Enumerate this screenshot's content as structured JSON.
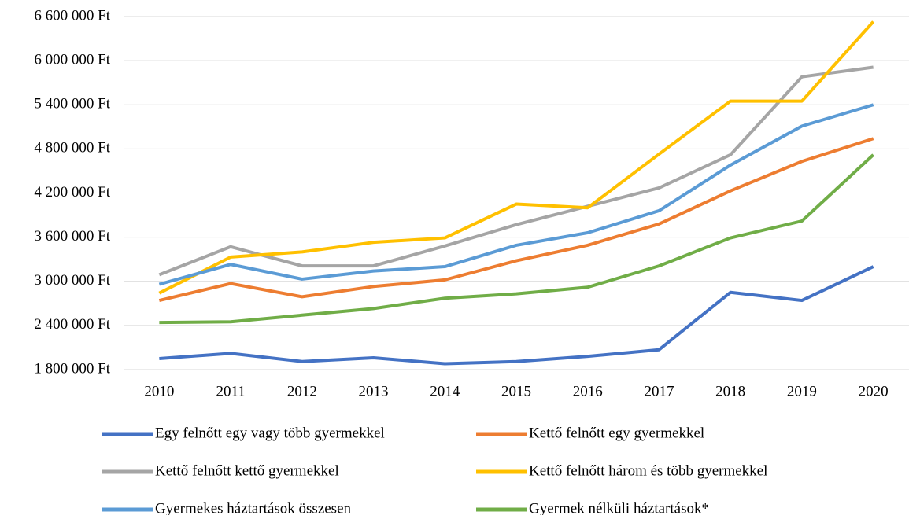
{
  "chart_data": {
    "type": "line",
    "categories": [
      "2010",
      "2011",
      "2012",
      "2013",
      "2014",
      "2015",
      "2016",
      "2017",
      "2018",
      "2019",
      "2020"
    ],
    "ylim": [
      1800000,
      6600000
    ],
    "yticks": [
      {
        "value": 1800000,
        "label": "1 800 000 Ft"
      },
      {
        "value": 2400000,
        "label": "2 400 000 Ft"
      },
      {
        "value": 3000000,
        "label": "3 000 000 Ft"
      },
      {
        "value": 3600000,
        "label": "3 600 000 Ft"
      },
      {
        "value": 4200000,
        "label": "4 200 000 Ft"
      },
      {
        "value": 4800000,
        "label": "4 800 000 Ft"
      },
      {
        "value": 5400000,
        "label": "5 400 000 Ft"
      },
      {
        "value": 6000000,
        "label": "6 000 000 Ft"
      },
      {
        "value": 6600000,
        "label": "6 600 000 Ft"
      }
    ],
    "grid": true,
    "series": [
      {
        "name": "Egy felnőtt egy vagy több gyermekkel",
        "color": "#4472c4",
        "values": [
          1950000,
          2020000,
          1910000,
          1960000,
          1880000,
          1910000,
          1980000,
          2070000,
          2850000,
          2740000,
          3200000
        ]
      },
      {
        "name": "Kettő felnőtt egy gyermekkel",
        "color": "#ed7d31",
        "values": [
          2740000,
          2970000,
          2790000,
          2930000,
          3020000,
          3280000,
          3490000,
          3780000,
          4230000,
          4630000,
          4940000
        ]
      },
      {
        "name": "Kettő felnőtt kettő gyermekkel",
        "color": "#a5a5a5",
        "values": [
          3090000,
          3470000,
          3210000,
          3210000,
          3480000,
          3770000,
          4020000,
          4270000,
          4720000,
          5780000,
          5910000
        ]
      },
      {
        "name": "Kettő felnőtt három és több gyermekkel",
        "color": "#ffc000",
        "values": [
          2840000,
          3330000,
          3400000,
          3530000,
          3590000,
          4050000,
          4000000,
          4730000,
          5450000,
          5450000,
          6530000
        ]
      },
      {
        "name": "Gyermekes háztartások összesen",
        "color": "#5b9bd5",
        "values": [
          2960000,
          3230000,
          3030000,
          3140000,
          3200000,
          3490000,
          3660000,
          3960000,
          4580000,
          5110000,
          5400000
        ]
      },
      {
        "name": "Gyermek nélküli háztartások*",
        "color": "#70ad47",
        "values": [
          2440000,
          2450000,
          2540000,
          2630000,
          2770000,
          2830000,
          2920000,
          3210000,
          3590000,
          3820000,
          4720000
        ]
      }
    ]
  }
}
